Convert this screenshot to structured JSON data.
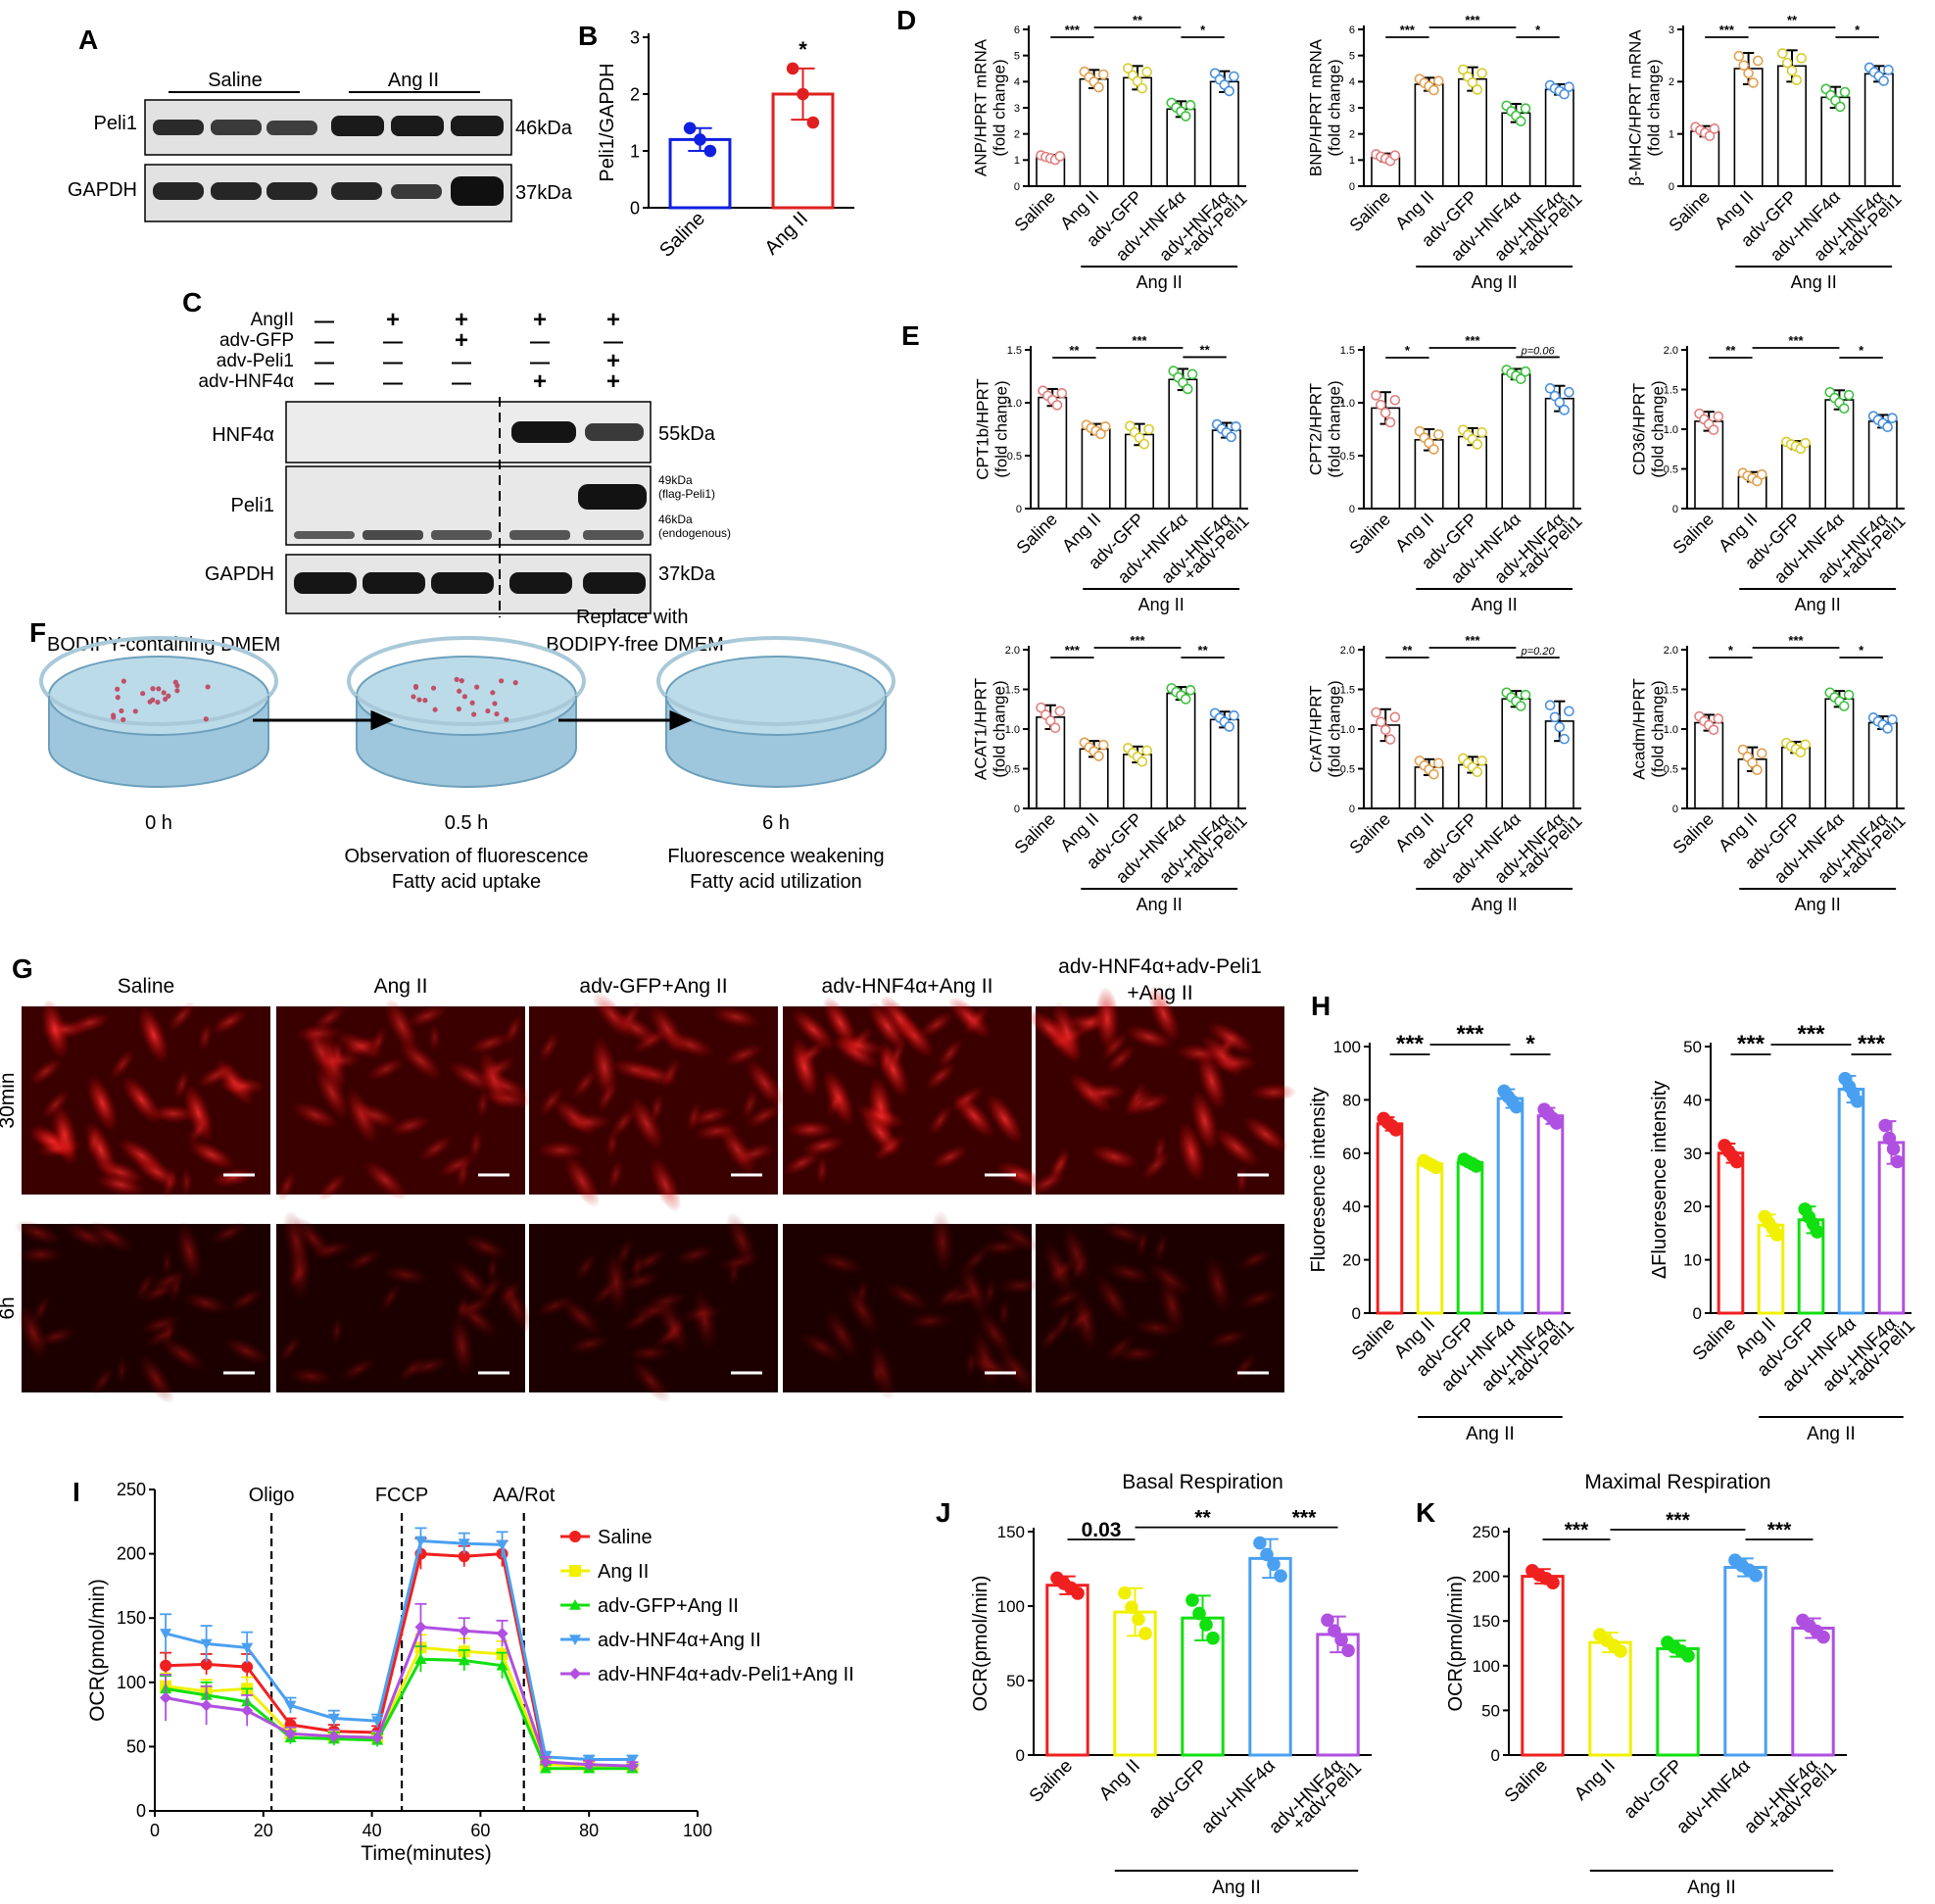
{
  "colors": {
    "saline": "#f02020",
    "angii": "#f0f000",
    "gfp": "#10e010",
    "hnf4a": "#4aa0f0",
    "peli1": "#b050e0",
    "d_saline": "#e08080",
    "d_angii": "#e0a050",
    "d_gfp": "#d8cc30",
    "d_hnf4a": "#40c040",
    "d_peli1": "#4a90e0",
    "blue": "#1020e0",
    "red": "#e02020"
  },
  "panel_letters": {
    "A": "A",
    "B": "B",
    "C": "C",
    "D": "D",
    "E": "E",
    "F": "F",
    "G": "G",
    "H": "H",
    "I": "I",
    "J": "J",
    "K": "K"
  },
  "common": {
    "ang_ii": "Ang II",
    "groups5": [
      "Saline",
      "Ang II",
      "adv-GFP",
      "adv-HNF4α",
      "adv-HNF4α\n+adv-Peli1"
    ]
  },
  "blot_a": {
    "groups": [
      "Saline",
      "Ang II"
    ],
    "rows": [
      {
        "label": "Peli1",
        "mw": "46kDa"
      },
      {
        "label": "GAPDH",
        "mw": "37kDa"
      }
    ]
  },
  "blot_c": {
    "conditions": [
      {
        "label": "AngII",
        "marks": [
          "—",
          "+",
          "+",
          "+",
          "+"
        ]
      },
      {
        "label": "adv-GFP",
        "marks": [
          "—",
          "—",
          "+",
          "—",
          "—"
        ]
      },
      {
        "label": "adv-Peli1",
        "marks": [
          "—",
          "—",
          "—",
          "—",
          "+"
        ]
      },
      {
        "label": "adv-HNF4α",
        "marks": [
          "—",
          "—",
          "—",
          "+",
          "+"
        ]
      }
    ],
    "rows": [
      {
        "label": "HNF4α",
        "mw": "55kDa"
      },
      {
        "label": "Peli1",
        "mw": "49kDa\n(flag-Peli1)\n46kDa\n(endogenous)"
      },
      {
        "label": "GAPDH",
        "mw": "37kDa"
      }
    ]
  },
  "scheme_f": {
    "top_left": "BODIPY-containing DMEM",
    "top_right": "Replace with\nBODIPY-free DMEM",
    "times": [
      "0 h",
      "0.5 h",
      "6 h"
    ],
    "notes_mid": [
      "Observation of fluorescence",
      "Fatty acid uptake"
    ],
    "notes_right": [
      "Fluorescence weakening",
      "Fatty acid utilization"
    ]
  },
  "micrographs_g": {
    "columns": [
      "Saline",
      "Ang II",
      "adv-GFP+Ang II",
      "adv-HNF4α+Ang II",
      "adv-HNF4α+adv-Peli1\n+Ang II"
    ],
    "rows": [
      "30min",
      "6h"
    ]
  },
  "chart_data": [
    {
      "id": "B",
      "type": "bar",
      "categories": [
        "Saline",
        "Ang II"
      ],
      "values": [
        1.2,
        2.0
      ],
      "errors": [
        0.2,
        0.45
      ],
      "points": [
        [
          1.4,
          1.2,
          1.0
        ],
        [
          2.45,
          2.0,
          1.5
        ]
      ],
      "ylabel": "Peli1/GAPDH",
      "ylim": [
        0,
        3
      ],
      "yticks": [
        0,
        1,
        2,
        3
      ],
      "annotations": [
        {
          "between": [
            1,
            1
          ],
          "text": "*"
        }
      ]
    },
    {
      "id": "D1",
      "type": "bar",
      "ylabel": "ANP/HPRT mRNA\n(fold change)",
      "ylim": [
        0,
        6
      ],
      "yticks": [
        0,
        1,
        2,
        3,
        4,
        5,
        6
      ],
      "values": [
        1.1,
        4.1,
        4.15,
        2.95,
        4.0
      ],
      "errors": [
        0.1,
        0.35,
        0.45,
        0.3,
        0.4
      ],
      "sig": [
        {
          "a": 0,
          "b": 1,
          "text": "***"
        },
        {
          "a": 1,
          "b": 3,
          "text": "**"
        },
        {
          "a": 3,
          "b": 4,
          "text": "*"
        }
      ]
    },
    {
      "id": "D2",
      "type": "bar",
      "ylabel": "BNP/HPRT mRNA\n(fold change)",
      "ylim": [
        0,
        6
      ],
      "yticks": [
        0,
        1,
        2,
        3,
        4,
        5,
        6
      ],
      "values": [
        1.1,
        3.9,
        4.1,
        2.8,
        3.7
      ],
      "errors": [
        0.15,
        0.25,
        0.45,
        0.35,
        0.2
      ],
      "sig": [
        {
          "a": 0,
          "b": 1,
          "text": "***"
        },
        {
          "a": 1,
          "b": 3,
          "text": "***"
        },
        {
          "a": 3,
          "b": 4,
          "text": "*"
        }
      ]
    },
    {
      "id": "D3",
      "type": "bar",
      "ylabel": "β-MHC/HPRT mRNA\n(fold change)",
      "ylim": [
        0,
        3
      ],
      "yticks": [
        0,
        1,
        2,
        3
      ],
      "values": [
        1.05,
        2.25,
        2.3,
        1.7,
        2.15
      ],
      "errors": [
        0.1,
        0.3,
        0.3,
        0.2,
        0.15
      ],
      "sig": [
        {
          "a": 0,
          "b": 1,
          "text": "***"
        },
        {
          "a": 1,
          "b": 3,
          "text": "**"
        },
        {
          "a": 3,
          "b": 4,
          "text": "*"
        }
      ]
    },
    {
      "id": "E1",
      "type": "bar",
      "ylabel": "CPT1b/HPRT\n(fold change)",
      "ylim": [
        0,
        1.5
      ],
      "yticks": [
        0,
        0.5,
        1.0,
        1.5
      ],
      "values": [
        1.05,
        0.75,
        0.7,
        1.22,
        0.74
      ],
      "errors": [
        0.08,
        0.05,
        0.1,
        0.1,
        0.07
      ],
      "sig": [
        {
          "a": 0,
          "b": 1,
          "text": "**"
        },
        {
          "a": 1,
          "b": 3,
          "text": "***"
        },
        {
          "a": 3,
          "b": 4,
          "text": "**"
        }
      ]
    },
    {
      "id": "E2",
      "type": "bar",
      "ylabel": "CPT2/HPRT\n(fold change)",
      "ylim": [
        0,
        1.5
      ],
      "yticks": [
        0,
        0.5,
        1.0,
        1.5
      ],
      "values": [
        0.95,
        0.65,
        0.68,
        1.27,
        1.04
      ],
      "errors": [
        0.15,
        0.1,
        0.08,
        0.05,
        0.12
      ],
      "sig": [
        {
          "a": 0,
          "b": 1,
          "text": "*"
        },
        {
          "a": 1,
          "b": 3,
          "text": "***"
        },
        {
          "a": 3,
          "b": 4,
          "text": "p=0.06",
          "italic": true
        }
      ]
    },
    {
      "id": "E3",
      "type": "bar",
      "ylabel": "CD36/HPRT\n(fold change)",
      "ylim": [
        0,
        2.0
      ],
      "yticks": [
        0,
        0.5,
        1.0,
        1.5,
        2.0
      ],
      "values": [
        1.1,
        0.4,
        0.8,
        1.37,
        1.1
      ],
      "errors": [
        0.12,
        0.06,
        0.05,
        0.12,
        0.08
      ],
      "sig": [
        {
          "a": 0,
          "b": 1,
          "text": "**"
        },
        {
          "a": 1,
          "b": 3,
          "text": "***"
        },
        {
          "a": 3,
          "b": 4,
          "text": "*"
        }
      ]
    },
    {
      "id": "E4",
      "type": "bar",
      "ylabel": "ACAT1/HPRT\n(fold change)",
      "ylim": [
        0,
        2.0
      ],
      "yticks": [
        0,
        0.5,
        1.0,
        1.5,
        2.0
      ],
      "values": [
        1.15,
        0.75,
        0.68,
        1.45,
        1.12
      ],
      "errors": [
        0.15,
        0.1,
        0.1,
        0.08,
        0.1
      ],
      "sig": [
        {
          "a": 0,
          "b": 1,
          "text": "***"
        },
        {
          "a": 1,
          "b": 3,
          "text": "***"
        },
        {
          "a": 3,
          "b": 4,
          "text": "**"
        }
      ]
    },
    {
      "id": "E5",
      "type": "bar",
      "ylabel": "CrAT/HPRT\n(fold change)",
      "ylim": [
        0,
        2.0
      ],
      "yticks": [
        0,
        0.5,
        1.0,
        1.5,
        2.0
      ],
      "values": [
        1.05,
        0.52,
        0.55,
        1.38,
        1.1
      ],
      "errors": [
        0.2,
        0.1,
        0.1,
        0.1,
        0.25
      ],
      "sig": [
        {
          "a": 0,
          "b": 1,
          "text": "**"
        },
        {
          "a": 1,
          "b": 3,
          "text": "***"
        },
        {
          "a": 3,
          "b": 4,
          "text": "p=0.20",
          "italic": true
        }
      ]
    },
    {
      "id": "E6",
      "type": "bar",
      "ylabel": "Acadm/HPRT\n(fold change)",
      "ylim": [
        0,
        2.0
      ],
      "yticks": [
        0,
        0.5,
        1.0,
        1.5,
        2.0
      ],
      "values": [
        1.08,
        0.62,
        0.77,
        1.38,
        1.08
      ],
      "errors": [
        0.1,
        0.15,
        0.07,
        0.1,
        0.08
      ],
      "sig": [
        {
          "a": 0,
          "b": 1,
          "text": "*"
        },
        {
          "a": 1,
          "b": 3,
          "text": "***"
        },
        {
          "a": 3,
          "b": 4,
          "text": "*"
        }
      ]
    },
    {
      "id": "H1",
      "type": "bar",
      "ylabel": "Fluoresence intensity",
      "ylim": [
        0,
        100
      ],
      "yticks": [
        0,
        20,
        40,
        60,
        80,
        100
      ],
      "values": [
        71,
        56,
        56.5,
        80.5,
        74
      ],
      "errors": [
        2.5,
        1.5,
        1.5,
        3.5,
        3
      ],
      "sig": [
        {
          "a": 0,
          "b": 1,
          "text": "***"
        },
        {
          "a": 1,
          "b": 3,
          "text": "***"
        },
        {
          "a": 3,
          "b": 4,
          "text": "*"
        }
      ]
    },
    {
      "id": "H2",
      "type": "bar",
      "ylabel": "ΔFluoresence intensity",
      "ylim": [
        0,
        50
      ],
      "yticks": [
        0,
        10,
        20,
        30,
        40,
        50
      ],
      "values": [
        30,
        16.5,
        17.5,
        42,
        32
      ],
      "errors": [
        1.8,
        2,
        2.5,
        2.5,
        4
      ],
      "sig": [
        {
          "a": 0,
          "b": 1,
          "text": "***"
        },
        {
          "a": 1,
          "b": 3,
          "text": "***"
        },
        {
          "a": 3,
          "b": 4,
          "text": "***"
        }
      ]
    },
    {
      "id": "I",
      "type": "line",
      "xlabel": "Time(minutes)",
      "ylabel": "OCR(pmol/min)",
      "xlim": [
        0,
        100
      ],
      "ylim": [
        0,
        250
      ],
      "xticks": [
        0,
        20,
        40,
        60,
        80,
        100
      ],
      "yticks": [
        0,
        50,
        100,
        150,
        200,
        250
      ],
      "x": [
        2,
        9.5,
        17,
        25,
        33,
        41,
        49,
        57,
        64,
        72,
        80,
        88
      ],
      "injections": [
        {
          "x": 21.5,
          "label": "Oligo"
        },
        {
          "x": 45.5,
          "label": "FCCP"
        },
        {
          "x": 68,
          "label": "AA/Rot"
        }
      ],
      "series": [
        {
          "name": "Saline",
          "values": [
            113,
            114,
            112,
            67,
            62,
            61,
            200,
            198,
            200,
            37,
            34,
            34
          ],
          "err": [
            10,
            8,
            10,
            5,
            5,
            5,
            12,
            8,
            10,
            4,
            3,
            3
          ]
        },
        {
          "name": "Ang II",
          "values": [
            97,
            93,
            95,
            60,
            58,
            57,
            127,
            124,
            122,
            36,
            35,
            34
          ],
          "err": [
            10,
            9,
            9,
            5,
            5,
            4,
            10,
            10,
            10,
            4,
            3,
            3
          ]
        },
        {
          "name": "adv-GFP+Ang II",
          "values": [
            95,
            90,
            85,
            57,
            56,
            55,
            118,
            117,
            113,
            33,
            33,
            33
          ],
          "err": [
            10,
            10,
            10,
            5,
            5,
            5,
            10,
            8,
            10,
            3,
            3,
            3
          ]
        },
        {
          "name": "adv-HNF4α+Ang II",
          "values": [
            138,
            130,
            127,
            82,
            72,
            70,
            210,
            208,
            207,
            42,
            40,
            40
          ],
          "err": [
            15,
            14,
            12,
            6,
            6,
            5,
            10,
            8,
            10,
            4,
            3,
            3
          ]
        },
        {
          "name": "adv-HNF4α+adv-Peli1+Ang II",
          "values": [
            88,
            82,
            78,
            60,
            58,
            57,
            143,
            140,
            138,
            38,
            36,
            35
          ],
          "err": [
            18,
            15,
            12,
            5,
            5,
            5,
            18,
            10,
            10,
            4,
            3,
            3
          ]
        }
      ]
    },
    {
      "id": "J",
      "type": "bar",
      "title": "Basal Respiration",
      "ylabel": "OCR(pmol/min)",
      "ylim": [
        0,
        150
      ],
      "yticks": [
        0,
        50,
        100,
        150
      ],
      "values": [
        114,
        96,
        92,
        132,
        81
      ],
      "errors": [
        6,
        16,
        15,
        13,
        12
      ],
      "sig": [
        {
          "a": 0,
          "b": 1,
          "text": "0.03"
        },
        {
          "a": 1,
          "b": 3,
          "text": "**"
        },
        {
          "a": 3,
          "b": 4,
          "text": "***"
        }
      ]
    },
    {
      "id": "K",
      "type": "bar",
      "title": "Maximal Respiration",
      "ylabel": "OCR(pmol/min)",
      "ylim": [
        0,
        250
      ],
      "yticks": [
        0,
        50,
        100,
        150,
        200,
        250
      ],
      "values": [
        200,
        126,
        119,
        210,
        142
      ],
      "errors": [
        8,
        11,
        9,
        10,
        11
      ],
      "sig": [
        {
          "a": 0,
          "b": 1,
          "text": "***"
        },
        {
          "a": 1,
          "b": 3,
          "text": "***"
        },
        {
          "a": 3,
          "b": 4,
          "text": "***"
        }
      ]
    }
  ]
}
